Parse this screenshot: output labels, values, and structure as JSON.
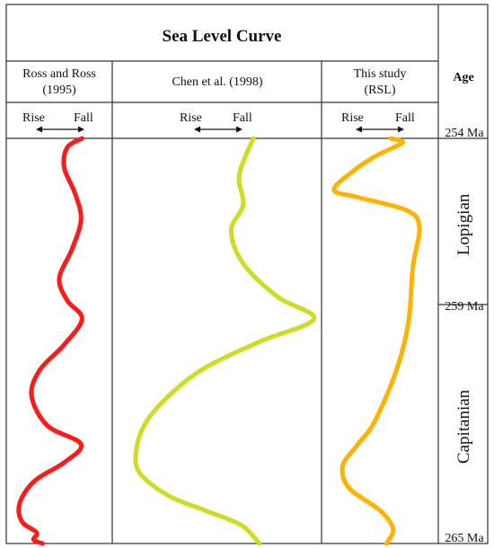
{
  "title": "Sea Level Curve",
  "columns": [
    {
      "id": "ross",
      "label_lines": [
        "Ross and Ross",
        "(1995)"
      ],
      "rise_label": "Rise",
      "fall_label": "Fall",
      "color": "#ff1a1a"
    },
    {
      "id": "chen",
      "label_lines": [
        "Chen et al. (1998)"
      ],
      "rise_label": "Rise",
      "fall_label": "Fall",
      "color": "#ccdd22"
    },
    {
      "id": "this",
      "label_lines": [
        "This study",
        "(RSL)"
      ],
      "rise_label": "Rise",
      "fall_label": "Fall",
      "color": "#ffb300"
    }
  ],
  "age_column": {
    "header": "Age",
    "labels": [
      "254 Ma",
      "259 Ma",
      "265 Ma"
    ],
    "label_ages": [
      254,
      259,
      265
    ],
    "periods": [
      {
        "name": "Lopigian",
        "from": 254,
        "to": 259
      },
      {
        "name": "Capitanian",
        "from": 259,
        "to": 265
      }
    ]
  },
  "chart_data": {
    "type": "line",
    "y_axis": {
      "range_ma": [
        254,
        265
      ],
      "direction": "down"
    },
    "x_axis": {
      "range": [
        0,
        1
      ],
      "left_label": "Rise",
      "right_label": "Fall"
    },
    "series": [
      {
        "column": "ross",
        "points": [
          [
            0.73,
            254.0
          ],
          [
            0.58,
            254.25
          ],
          [
            0.55,
            254.8
          ],
          [
            0.66,
            255.5
          ],
          [
            0.72,
            256.2
          ],
          [
            0.63,
            257.0
          ],
          [
            0.5,
            257.8
          ],
          [
            0.58,
            258.4
          ],
          [
            0.73,
            258.9
          ],
          [
            0.55,
            259.6
          ],
          [
            0.3,
            260.3
          ],
          [
            0.22,
            261.0
          ],
          [
            0.38,
            261.8
          ],
          [
            0.72,
            262.3
          ],
          [
            0.55,
            262.8
          ],
          [
            0.25,
            263.3
          ],
          [
            0.1,
            263.9
          ],
          [
            0.12,
            264.4
          ],
          [
            0.27,
            264.7
          ],
          [
            0.24,
            264.9
          ],
          [
            0.33,
            265.0
          ]
        ]
      },
      {
        "column": "chen",
        "points": [
          [
            0.68,
            254.0
          ],
          [
            0.61,
            255.0
          ],
          [
            0.63,
            255.8
          ],
          [
            0.57,
            256.5
          ],
          [
            0.63,
            257.4
          ],
          [
            0.8,
            258.3
          ],
          [
            0.98,
            258.9
          ],
          [
            0.72,
            259.5
          ],
          [
            0.45,
            260.2
          ],
          [
            0.28,
            260.9
          ],
          [
            0.15,
            261.7
          ],
          [
            0.1,
            262.5
          ],
          [
            0.12,
            263.1
          ],
          [
            0.26,
            263.7
          ],
          [
            0.44,
            264.1
          ],
          [
            0.62,
            264.5
          ],
          [
            0.71,
            265.0
          ]
        ]
      },
      {
        "column": "this",
        "points": [
          [
            0.6,
            254.0
          ],
          [
            0.71,
            254.1
          ],
          [
            0.62,
            254.25
          ],
          [
            0.45,
            254.5
          ],
          [
            0.25,
            254.9
          ],
          [
            0.08,
            255.4
          ],
          [
            0.3,
            255.6
          ],
          [
            0.74,
            255.95
          ],
          [
            0.86,
            256.4
          ],
          [
            0.8,
            257.5
          ],
          [
            0.76,
            259.0
          ],
          [
            0.65,
            260.3
          ],
          [
            0.45,
            261.7
          ],
          [
            0.3,
            262.3
          ],
          [
            0.16,
            262.9
          ],
          [
            0.22,
            263.5
          ],
          [
            0.5,
            264.1
          ],
          [
            0.62,
            264.6
          ],
          [
            0.56,
            265.0
          ]
        ]
      }
    ]
  }
}
